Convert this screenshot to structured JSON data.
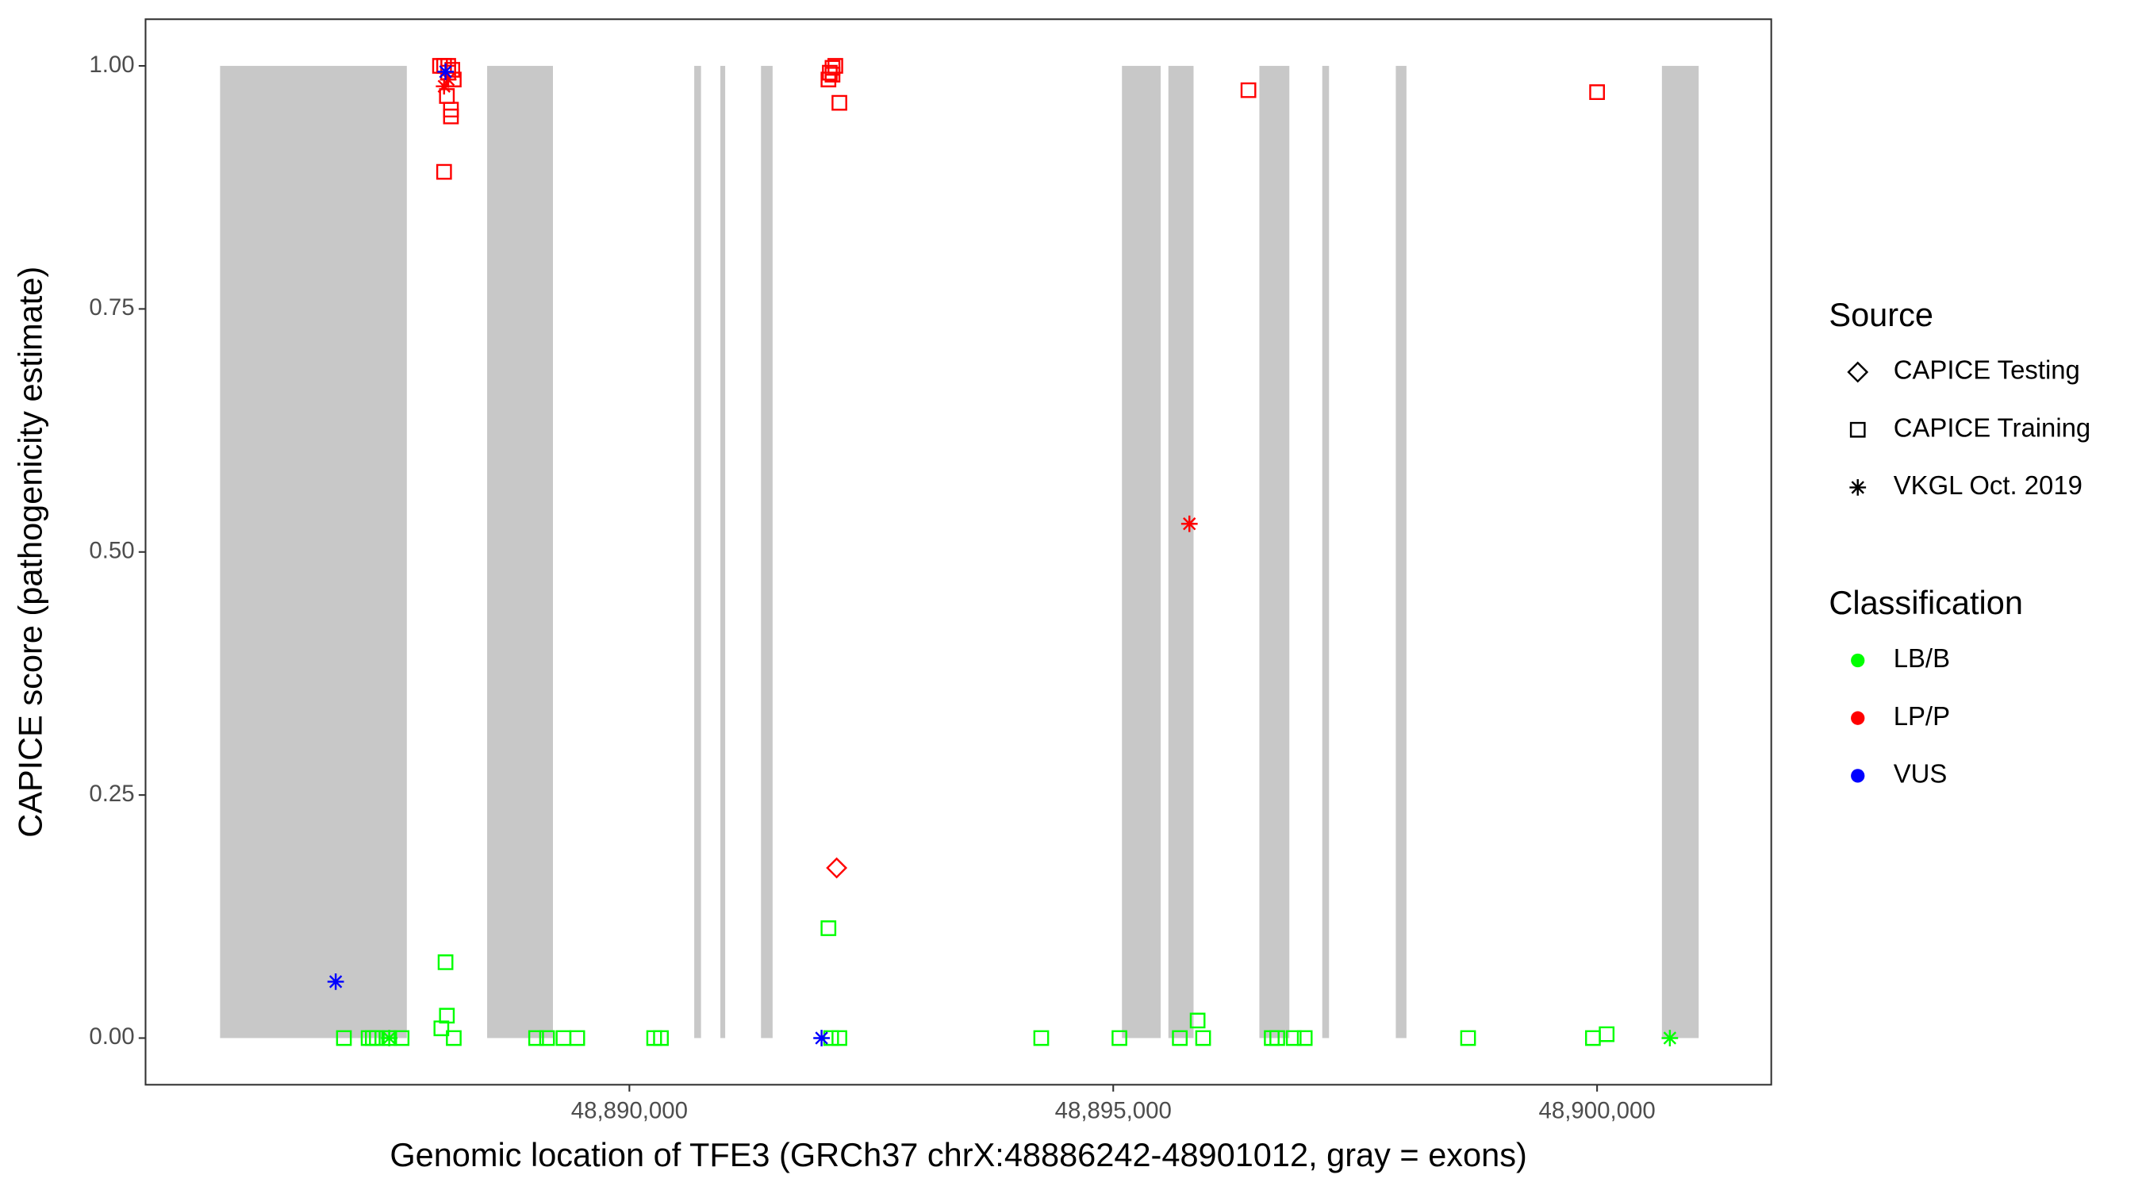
{
  "chart_data": {
    "type": "scatter",
    "x_label": "Genomic location of TFE3 (GRCh37 chrX:48886242-48901012, gray = exons)",
    "y_label": "CAPICE score (pathogenicity estimate)",
    "xlim": [
      48885000,
      48901800
    ],
    "ylim": [
      -0.048,
      1.048
    ],
    "xticks": [
      {
        "value": 48890000,
        "label": "48,890,000"
      },
      {
        "value": 48895000,
        "label": "48,895,000"
      },
      {
        "value": 48900000,
        "label": "48,900,000"
      }
    ],
    "yticks": [
      {
        "value": 0,
        "label": "0.00"
      },
      0.25,
      {
        "value": 0.5,
        "label": "0.50"
      },
      0.75,
      {
        "value": 1,
        "label": "1.00"
      }
    ],
    "grid": false,
    "exon_color": "#c8c8c8",
    "exons": [
      [
        48885770,
        48887700
      ],
      [
        48888530,
        48889210
      ],
      [
        48890670,
        48890740
      ],
      [
        48890940,
        48890990
      ],
      [
        48891360,
        48891480
      ],
      [
        48895090,
        48895490
      ],
      [
        48895570,
        48895830
      ],
      [
        48896510,
        48896820
      ],
      [
        48897160,
        48897230
      ],
      [
        48897920,
        48898030
      ],
      [
        48900670,
        48901050
      ]
    ],
    "legend_source": {
      "title": "Source",
      "items": [
        {
          "name": "CAPICE Testing",
          "shape": "diamond"
        },
        {
          "name": "CAPICE Training",
          "shape": "square"
        },
        {
          "name": "VKGL Oct. 2019",
          "shape": "asterisk"
        }
      ]
    },
    "legend_classification": {
      "title": "Classification",
      "items": [
        {
          "name": "LB/B",
          "color": "#00ff00"
        },
        {
          "name": "LP/P",
          "color": "#ff0000"
        },
        {
          "name": "VUS",
          "color": "#0000ff"
        }
      ]
    },
    "series": [
      {
        "shape": "square",
        "color": "#00ff00",
        "x": [
          48887050,
          48887305,
          48887348,
          48887390,
          48887518,
          48887646,
          48888185,
          48889036,
          48889149,
          48889319,
          48889461,
          48890256,
          48890326,
          48892085,
          48892170,
          48894256,
          48895064,
          48895688,
          48895929,
          48896638,
          48896695,
          48896865,
          48896979,
          48898667,
          48899957,
          48900099,
          48888057,
          48888114,
          48888100,
          48892057,
          48895872
        ],
        "y": [
          0,
          0,
          0,
          0,
          0,
          0,
          0,
          0,
          0,
          0,
          0,
          0,
          0,
          0,
          0,
          0,
          0,
          0,
          0,
          0,
          0,
          0,
          0,
          0,
          0,
          0.004,
          0.01,
          0.023,
          0.078,
          0.113,
          0.018
        ]
      },
      {
        "shape": "asterisk",
        "color": "#00ff00",
        "x": [
          48887518,
          48900752
        ],
        "y": [
          0,
          0
        ]
      },
      {
        "shape": "square",
        "color": "#ff0000",
        "x": [
          48888085,
          48888156,
          48888156,
          48888114,
          48888185,
          48888128,
          48888043,
          48888085,
          48888128,
          48888170,
          48892057,
          48892071,
          48892099,
          48892128,
          48892099,
          48892170,
          48896397,
          48900000
        ],
        "y": [
          0.891,
          0.948,
          0.955,
          0.969,
          0.986,
          0.993,
          1.0,
          1.0,
          1.0,
          0.996,
          0.986,
          0.993,
          0.998,
          1.0,
          0.991,
          0.962,
          0.975,
          0.973
        ]
      },
      {
        "shape": "diamond",
        "color": "#ff0000",
        "x": [
          48892142
        ],
        "y": [
          0.175
        ]
      },
      {
        "shape": "asterisk",
        "color": "#ff0000",
        "x": [
          48895787,
          48888085,
          48888128
        ],
        "y": [
          0.529,
          0.979,
          0.986
        ]
      },
      {
        "shape": "asterisk",
        "color": "#0000ff",
        "x": [
          48886965,
          48888100,
          48891986
        ],
        "y": [
          0.058,
          0.994,
          0
        ]
      }
    ]
  }
}
